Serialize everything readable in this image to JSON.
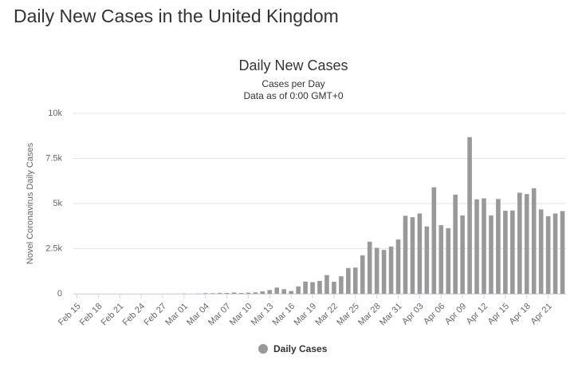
{
  "heading": "Daily New Cases in the United Kingdom",
  "chart_data": {
    "type": "bar",
    "title": "Daily New Cases",
    "subtitle": [
      "Cases per Day",
      "Data as of 0:00 GMT+0"
    ],
    "y_label": "Novel Coronavirus Daily Cases",
    "categories": [
      "Feb 15",
      null,
      null,
      "Feb 18",
      null,
      null,
      "Feb 21",
      null,
      null,
      "Feb 24",
      null,
      null,
      "Feb 27",
      null,
      null,
      "Mar 01",
      null,
      null,
      "Mar 04",
      null,
      null,
      "Mar 07",
      null,
      null,
      "Mar 10",
      null,
      null,
      "Mar 13",
      null,
      null,
      "Mar 16",
      null,
      null,
      "Mar 19",
      null,
      null,
      "Mar 22",
      null,
      null,
      "Mar 25",
      null,
      null,
      "Mar 28",
      null,
      null,
      "Mar 31",
      null,
      null,
      "Apr 03",
      null,
      null,
      "Apr 06",
      null,
      null,
      "Apr 09",
      null,
      null,
      "Apr 12",
      null,
      null,
      "Apr 15",
      null,
      null,
      "Apr 18",
      null,
      null,
      "Apr 21",
      null,
      null
    ],
    "series": [
      {
        "name": "Daily Cases",
        "color": "#999999",
        "values": [
          0,
          0,
          0,
          0,
          0,
          0,
          0,
          0,
          0,
          0,
          0,
          0,
          0,
          4,
          3,
          12,
          4,
          11,
          34,
          29,
          48,
          45,
          69,
          43,
          62,
          77,
          130,
          208,
          342,
          251,
          152,
          407,
          676,
          643,
          714,
          1035,
          665,
          967,
          1427,
          1452,
          2129,
          2885,
          2546,
          2433,
          2619,
          3009,
          4324,
          4244,
          4450,
          3735,
          5903,
          3802,
          3634,
          5491,
          4344,
          8681,
          5233,
          5288,
          4342,
          5252,
          4603,
          4617,
          5599,
          5525,
          5850,
          4676,
          4301,
          4451,
          4583
        ]
      }
    ],
    "ylim": [
      0,
      10000
    ],
    "yticks": [
      0,
      {
        "value": 2500,
        "label": "2.5k"
      },
      {
        "value": 5000,
        "label": "5k"
      },
      {
        "value": 7500,
        "label": "7.5k"
      },
      {
        "value": 10000,
        "label": "10k"
      }
    ],
    "grid": true
  }
}
